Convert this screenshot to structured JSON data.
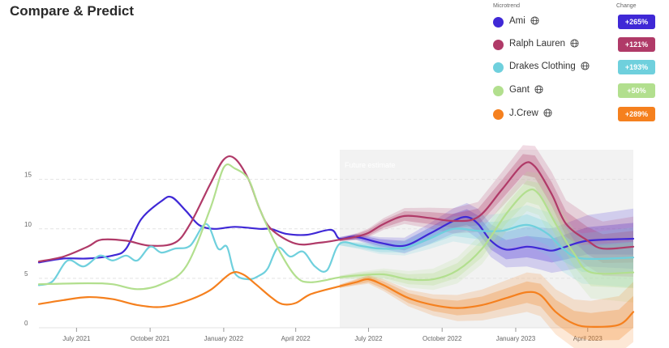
{
  "page": {
    "title": "Compare & Predict"
  },
  "legend": {
    "header_microtrend": "Microtrend",
    "header_change": "Change",
    "items": [
      {
        "name": "Ami",
        "change": "+265%",
        "color": "#3f28d6",
        "icon": "globe-icon"
      },
      {
        "name": "Ralph Lauren",
        "change": "+121%",
        "color": "#b03a68",
        "icon": "globe-icon"
      },
      {
        "name": "Drakes Clothing",
        "change": "+193%",
        "color": "#6fd0dd",
        "icon": "globe-icon"
      },
      {
        "name": "Gant",
        "change": "+50%",
        "color": "#b2df8e",
        "icon": "globe-icon"
      },
      {
        "name": "J.Crew",
        "change": "+289%",
        "color": "#f5801e",
        "icon": "globe-icon"
      }
    ]
  },
  "chart_data": {
    "type": "line",
    "x_unit": "month",
    "xlim": [
      "2021-05-15",
      "2023-05-28"
    ],
    "ylim": [
      0,
      18
    ],
    "yticks": [
      0,
      5,
      10,
      15
    ],
    "xticks": [
      {
        "date": "2021-07-01",
        "label": "July 2021"
      },
      {
        "date": "2021-10-01",
        "label": "October 2021"
      },
      {
        "date": "2022-01-01",
        "label": "January 2022"
      },
      {
        "date": "2022-04-01",
        "label": "April 2022"
      },
      {
        "date": "2022-07-01",
        "label": "July 2022"
      },
      {
        "date": "2022-10-01",
        "label": "October 2022"
      },
      {
        "date": "2023-01-01",
        "label": "January 2023"
      },
      {
        "date": "2023-04-01",
        "label": "April 2023"
      }
    ],
    "future_start": "2022-05-26",
    "future_label": "Future estimate",
    "grid": "horizontal dashed",
    "series": [
      {
        "name": "Ami",
        "color": "#3f28d6",
        "points": [
          [
            "2021-05-15",
            6.6
          ],
          [
            "2021-06-15",
            7.0
          ],
          [
            "2021-07-15",
            7.0
          ],
          [
            "2021-08-15",
            7.3
          ],
          [
            "2021-09-01",
            8.0
          ],
          [
            "2021-09-20",
            11.0
          ],
          [
            "2021-10-15",
            12.8
          ],
          [
            "2021-10-28",
            13.2
          ],
          [
            "2021-11-15",
            11.8
          ],
          [
            "2021-12-01",
            10.4
          ],
          [
            "2021-12-20",
            10.0
          ],
          [
            "2022-01-15",
            10.2
          ],
          [
            "2022-02-15",
            10.0
          ],
          [
            "2022-03-01",
            10.0
          ],
          [
            "2022-03-20",
            9.5
          ],
          [
            "2022-04-15",
            9.4
          ],
          [
            "2022-05-15",
            9.9
          ],
          [
            "2022-05-26",
            9.0
          ],
          [
            "2022-06-15",
            9.2
          ],
          [
            "2022-07-15",
            8.6
          ],
          [
            "2022-08-15",
            8.3
          ],
          [
            "2022-09-15",
            9.5
          ],
          [
            "2022-10-15",
            10.8
          ],
          [
            "2022-11-01",
            11.2
          ],
          [
            "2022-11-15",
            10.5
          ],
          [
            "2022-12-01",
            8.8
          ],
          [
            "2022-12-20",
            7.9
          ],
          [
            "2023-01-15",
            8.2
          ],
          [
            "2023-02-01",
            8.0
          ],
          [
            "2023-02-15",
            7.8
          ],
          [
            "2023-03-01",
            8.1
          ],
          [
            "2023-04-01",
            8.8
          ],
          [
            "2023-05-28",
            9.0
          ]
        ]
      },
      {
        "name": "Ralph Lauren",
        "color": "#b03a68",
        "points": [
          [
            "2021-05-15",
            6.7
          ],
          [
            "2021-06-15",
            7.2
          ],
          [
            "2021-07-15",
            8.2
          ],
          [
            "2021-08-01",
            8.9
          ],
          [
            "2021-09-01",
            8.8
          ],
          [
            "2021-10-01",
            8.3
          ],
          [
            "2021-11-01",
            8.6
          ],
          [
            "2021-11-20",
            10.5
          ],
          [
            "2021-12-15",
            14.5
          ],
          [
            "2022-01-01",
            17.0
          ],
          [
            "2022-01-15",
            17.1
          ],
          [
            "2022-02-01",
            15.0
          ],
          [
            "2022-02-15",
            12.0
          ],
          [
            "2022-03-01",
            10.0
          ],
          [
            "2022-04-01",
            8.5
          ],
          [
            "2022-05-01",
            8.6
          ],
          [
            "2022-05-26",
            8.9
          ],
          [
            "2022-06-15",
            9.2
          ],
          [
            "2022-07-01",
            9.6
          ],
          [
            "2022-07-20",
            10.5
          ],
          [
            "2022-08-15",
            11.3
          ],
          [
            "2022-09-15",
            11.1
          ],
          [
            "2022-10-15",
            10.8
          ],
          [
            "2022-11-15",
            11.2
          ],
          [
            "2022-12-15",
            14.0
          ],
          [
            "2023-01-10",
            16.5
          ],
          [
            "2023-01-25",
            16.3
          ],
          [
            "2023-02-15",
            13.5
          ],
          [
            "2023-03-05",
            10.5
          ],
          [
            "2023-04-01",
            8.8
          ],
          [
            "2023-04-20",
            8.0
          ],
          [
            "2023-05-28",
            8.2
          ]
        ]
      },
      {
        "name": "Drakes Clothing",
        "color": "#6fd0dd",
        "points": [
          [
            "2021-05-15",
            4.3
          ],
          [
            "2021-06-01",
            4.7
          ],
          [
            "2021-06-20",
            6.8
          ],
          [
            "2021-07-10",
            6.2
          ],
          [
            "2021-07-30",
            7.3
          ],
          [
            "2021-08-15",
            6.8
          ],
          [
            "2021-09-01",
            7.3
          ],
          [
            "2021-09-15",
            6.8
          ],
          [
            "2021-10-01",
            8.2
          ],
          [
            "2021-10-15",
            7.6
          ],
          [
            "2021-11-01",
            8.0
          ],
          [
            "2021-11-20",
            8.3
          ],
          [
            "2021-12-10",
            10.5
          ],
          [
            "2021-12-25",
            8.0
          ],
          [
            "2022-01-05",
            8.2
          ],
          [
            "2022-01-15",
            5.5
          ],
          [
            "2022-02-01",
            4.9
          ],
          [
            "2022-02-15",
            5.3
          ],
          [
            "2022-02-25",
            6.0
          ],
          [
            "2022-03-10",
            8.1
          ],
          [
            "2022-03-25",
            7.2
          ],
          [
            "2022-04-10",
            7.7
          ],
          [
            "2022-04-25",
            6.2
          ],
          [
            "2022-05-10",
            5.8
          ],
          [
            "2022-05-26",
            8.5
          ],
          [
            "2022-06-20",
            8.3
          ],
          [
            "2022-07-15",
            8.0
          ],
          [
            "2022-08-15",
            8.1
          ],
          [
            "2022-09-15",
            9.0
          ],
          [
            "2022-10-15",
            10.0
          ],
          [
            "2022-11-15",
            9.8
          ],
          [
            "2022-12-15",
            9.8
          ],
          [
            "2023-01-15",
            10.4
          ],
          [
            "2023-02-10",
            9.5
          ],
          [
            "2023-03-01",
            8.0
          ],
          [
            "2023-03-25",
            7.0
          ],
          [
            "2023-05-28",
            7.1
          ]
        ]
      },
      {
        "name": "Gant",
        "color": "#b2df8e",
        "points": [
          [
            "2021-05-15",
            4.4
          ],
          [
            "2021-07-15",
            4.5
          ],
          [
            "2021-08-15",
            4.4
          ],
          [
            "2021-09-15",
            3.9
          ],
          [
            "2021-10-15",
            4.4
          ],
          [
            "2021-11-15",
            6.2
          ],
          [
            "2021-12-15",
            12.0
          ],
          [
            "2022-01-01",
            16.2
          ],
          [
            "2022-01-15",
            16.1
          ],
          [
            "2022-02-01",
            15.0
          ],
          [
            "2022-02-15",
            12.0
          ],
          [
            "2022-03-10",
            8.0
          ],
          [
            "2022-04-01",
            5.2
          ],
          [
            "2022-04-20",
            4.6
          ],
          [
            "2022-05-26",
            5.1
          ],
          [
            "2022-06-20",
            5.3
          ],
          [
            "2022-07-20",
            5.4
          ],
          [
            "2022-08-20",
            4.9
          ],
          [
            "2022-09-20",
            4.9
          ],
          [
            "2022-10-20",
            5.8
          ],
          [
            "2022-11-20",
            8.0
          ],
          [
            "2022-12-20",
            11.5
          ],
          [
            "2023-01-15",
            13.8
          ],
          [
            "2023-01-30",
            13.5
          ],
          [
            "2023-02-20",
            10.5
          ],
          [
            "2023-03-15",
            7.5
          ],
          [
            "2023-04-05",
            5.6
          ],
          [
            "2023-05-28",
            5.6
          ]
        ]
      },
      {
        "name": "J.Crew",
        "color": "#f5801e",
        "points": [
          [
            "2021-05-15",
            2.4
          ],
          [
            "2021-06-15",
            2.8
          ],
          [
            "2021-07-15",
            3.1
          ],
          [
            "2021-08-15",
            2.9
          ],
          [
            "2021-09-15",
            2.3
          ],
          [
            "2021-10-15",
            2.1
          ],
          [
            "2021-11-15",
            2.7
          ],
          [
            "2021-12-15",
            3.8
          ],
          [
            "2022-01-10",
            5.5
          ],
          [
            "2022-01-25",
            5.4
          ],
          [
            "2022-02-10",
            4.4
          ],
          [
            "2022-03-01",
            3.1
          ],
          [
            "2022-03-15",
            2.4
          ],
          [
            "2022-04-01",
            2.5
          ],
          [
            "2022-04-20",
            3.4
          ],
          [
            "2022-05-26",
            4.2
          ],
          [
            "2022-06-15",
            4.6
          ],
          [
            "2022-07-01",
            4.9
          ],
          [
            "2022-07-20",
            4.3
          ],
          [
            "2022-08-20",
            3.0
          ],
          [
            "2022-09-20",
            2.3
          ],
          [
            "2022-10-20",
            2.0
          ],
          [
            "2022-11-20",
            2.3
          ],
          [
            "2022-12-20",
            3.0
          ],
          [
            "2023-01-15",
            3.6
          ],
          [
            "2023-02-01",
            3.3
          ],
          [
            "2023-02-20",
            1.6
          ],
          [
            "2023-03-15",
            0.4
          ],
          [
            "2023-04-05",
            0.1
          ],
          [
            "2023-05-10",
            0.3
          ],
          [
            "2023-05-28",
            1.6
          ]
        ]
      }
    ]
  }
}
